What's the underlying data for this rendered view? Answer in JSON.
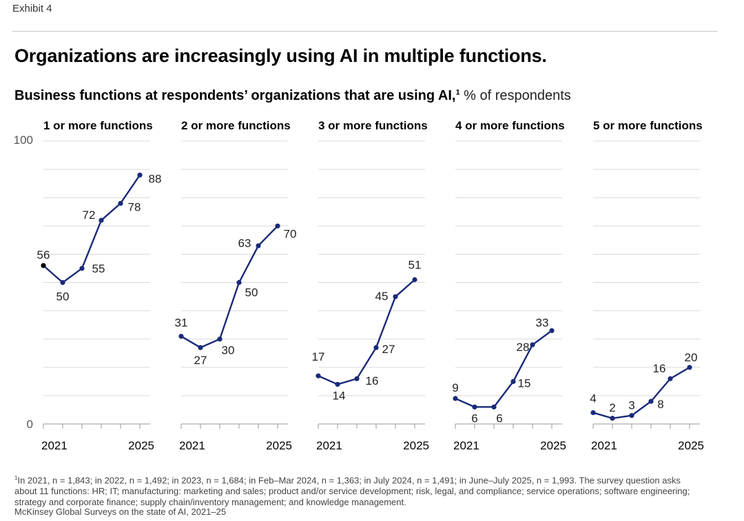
{
  "header": {
    "exhibit": "Exhibit 4",
    "title": "Organizations are increasingly using AI in multiple functions.",
    "subtitle": "Business functions at respondents’ organizations that are using AI,",
    "subtitle_sup": "1",
    "unit": " % of respondents"
  },
  "footnote": {
    "marker": "1",
    "text": "In 2021, n = 1,843; in 2022, n = 1,492; in 2023, n = 1,684; in Feb–Mar 2024, n = 1,363; in July 2024, n = 1,491; in June–July 2025, n = 1,993. The survey question asks about 11 functions: HR; IT; manufacturing: marketing and sales; product and/or service development; risk, legal, and compliance; service operations; software engineering; strategy and corporate finance; supply chain/inventory management; and knowledge management.",
    "source": "McKinsey Global Surveys on the state of AI, 2021–25"
  },
  "colors": {
    "line": "#1a2a7a",
    "first_point": "#000000",
    "grid": "#d9d9d9",
    "axis": "#999999"
  },
  "chart_data": [
    {
      "type": "line",
      "title": "1 or more functions",
      "x": [
        "2021",
        "2022",
        "2023",
        "Feb–Mar 2024",
        "July 2024",
        "June–July 2025"
      ],
      "x_tick_labels": [
        "2021",
        "2025"
      ],
      "values": [
        56,
        50,
        55,
        72,
        78,
        88
      ],
      "labels": [
        "56",
        "50",
        "55",
        "72",
        "78",
        "88"
      ],
      "ylim": [
        0,
        100
      ],
      "y_tick_labels": [
        "0",
        "100"
      ]
    },
    {
      "type": "line",
      "title": "2 or more functions",
      "x": [
        "2021",
        "2022",
        "2023",
        "Feb–Mar 2024",
        "July 2024",
        "June–July 2025"
      ],
      "x_tick_labels": [
        "2021",
        "2025"
      ],
      "values": [
        31,
        27,
        30,
        50,
        63,
        70
      ],
      "labels": [
        "31",
        "27",
        "30",
        "50",
        "63",
        "70"
      ],
      "ylim": [
        0,
        100
      ]
    },
    {
      "type": "line",
      "title": "3 or more functions",
      "x": [
        "2021",
        "2022",
        "2023",
        "Feb–Mar 2024",
        "July 2024",
        "June–July 2025"
      ],
      "x_tick_labels": [
        "2021",
        "2025"
      ],
      "values": [
        17,
        14,
        16,
        27,
        45,
        51
      ],
      "labels": [
        "17",
        "14",
        "16",
        "27",
        "45",
        "51"
      ],
      "ylim": [
        0,
        100
      ]
    },
    {
      "type": "line",
      "title": "4 or more functions",
      "x": [
        "2021",
        "2022",
        "2023",
        "Feb–Mar 2024",
        "July 2024",
        "June–July 2025"
      ],
      "x_tick_labels": [
        "2021",
        "2025"
      ],
      "values": [
        9,
        6,
        6,
        15,
        28,
        33
      ],
      "labels": [
        "9",
        "6",
        "6",
        "15",
        "28",
        "33"
      ],
      "ylim": [
        0,
        100
      ]
    },
    {
      "type": "line",
      "title": "5 or more functions",
      "x": [
        "2021",
        "2022",
        "2023",
        "Feb–Mar 2024",
        "July 2024",
        "June–July 2025"
      ],
      "x_tick_labels": [
        "2021",
        "2025"
      ],
      "values": [
        4,
        2,
        3,
        8,
        16,
        20
      ],
      "labels": [
        "4",
        "2",
        "3",
        "8",
        "16",
        "20"
      ],
      "ylim": [
        0,
        100
      ]
    }
  ]
}
